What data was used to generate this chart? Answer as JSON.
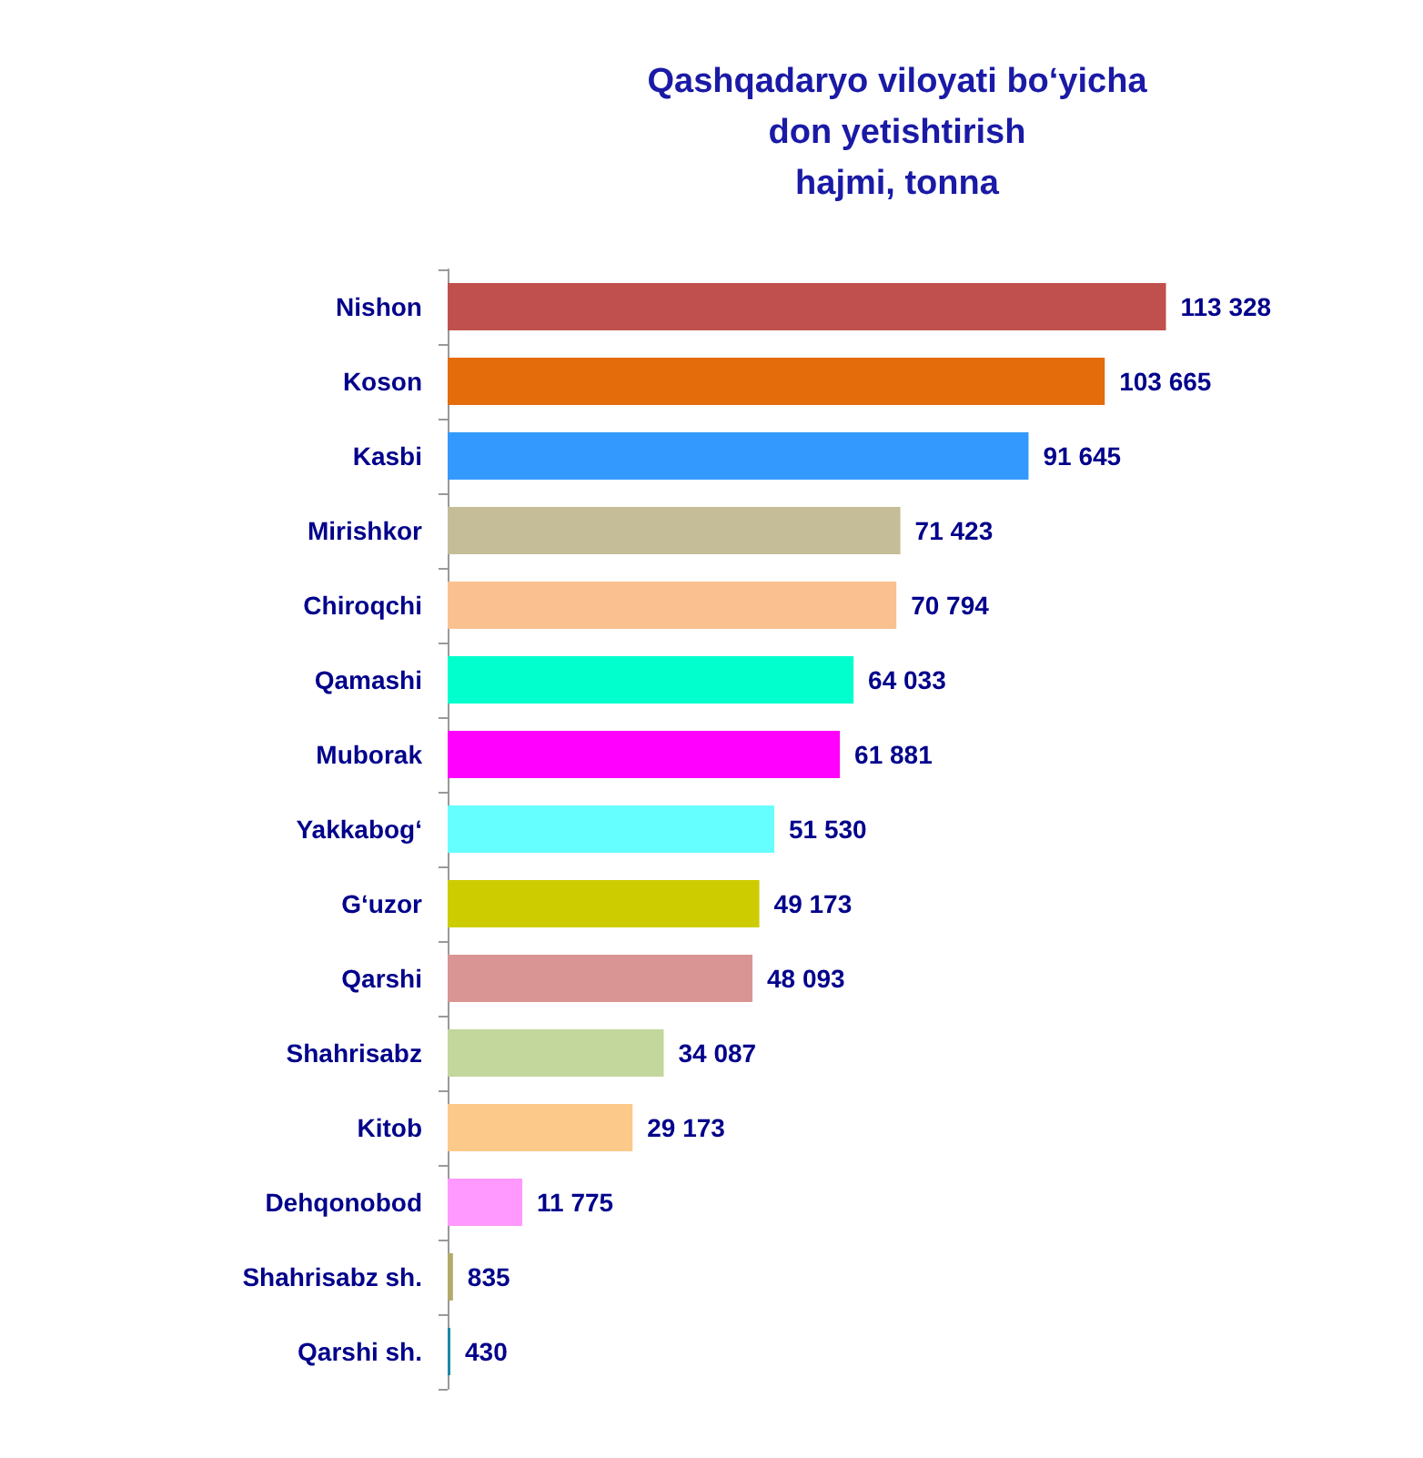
{
  "chart_data": {
    "type": "bar",
    "orientation": "horizontal",
    "title": "Qashqadaryo viloyati bo‘yicha\ndon yetishtirish\nhajmi, tonna",
    "categories": [
      "Nishon",
      "Koson",
      "Kasbi",
      "Mirishkor",
      "Chiroqchi",
      "Qamashi",
      "Muborak",
      "Yakkabog‘",
      "G‘uzor",
      "Qarshi",
      "Shahrisabz",
      "Kitob",
      "Dehqonobod",
      "Shahrisabz sh.",
      "Qarshi sh."
    ],
    "values": [
      113328,
      103665,
      91645,
      71423,
      70794,
      64033,
      61881,
      51530,
      49173,
      48093,
      34087,
      29173,
      11775,
      835,
      430
    ],
    "value_labels": [
      "113 328",
      "103 665",
      "91 645",
      "71 423",
      "70 794",
      "64 033",
      "61 881",
      "51 530",
      "49 173",
      "48 093",
      "34 087",
      "29 173",
      "11 775",
      "835",
      "430"
    ],
    "colors": [
      "#c0504d",
      "#e46c0a",
      "#3399ff",
      "#c4bd97",
      "#fac090",
      "#00ffcc",
      "#ff00ff",
      "#66ffff",
      "#cccc00",
      "#d99594",
      "#c3d69b",
      "#fcc98a",
      "#ff99ff",
      "#b3a96b",
      "#1b8aa5"
    ]
  }
}
